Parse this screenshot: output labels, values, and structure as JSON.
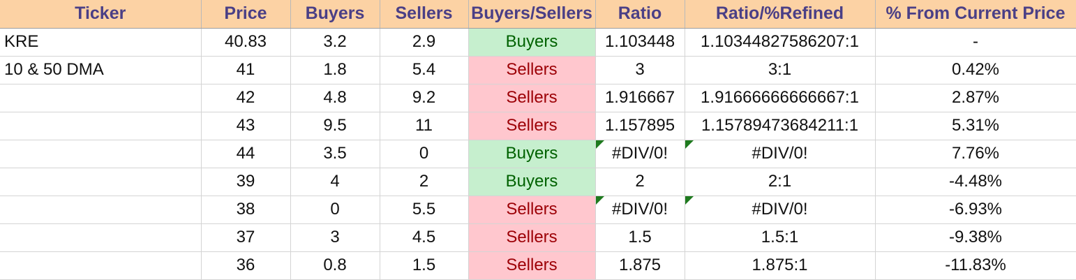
{
  "headers": [
    "Ticker",
    "Price",
    "Buyers",
    "Sellers",
    "Buyers/Sellers",
    "Ratio",
    "Ratio/%Refined",
    "% From Current Price"
  ],
  "rows": [
    {
      "ticker": "KRE",
      "price": "40.83",
      "buyers": "3.2",
      "sellers": "2.9",
      "side": "Buyers",
      "ratio": "1.103448",
      "refined": "1.10344827586207:1",
      "from_current": "-",
      "ratio_flag": false,
      "refined_flag": false
    },
    {
      "ticker": "10 & 50 DMA",
      "price": "41",
      "buyers": "1.8",
      "sellers": "5.4",
      "side": "Sellers",
      "ratio": "3",
      "refined": "3:1",
      "from_current": "0.42%",
      "ratio_flag": false,
      "refined_flag": false
    },
    {
      "ticker": "",
      "price": "42",
      "buyers": "4.8",
      "sellers": "9.2",
      "side": "Sellers",
      "ratio": "1.916667",
      "refined": "1.91666666666667:1",
      "from_current": "2.87%",
      "ratio_flag": false,
      "refined_flag": false
    },
    {
      "ticker": "",
      "price": "43",
      "buyers": "9.5",
      "sellers": "11",
      "side": "Sellers",
      "ratio": "1.157895",
      "refined": "1.15789473684211:1",
      "from_current": "5.31%",
      "ratio_flag": false,
      "refined_flag": false
    },
    {
      "ticker": "",
      "price": "44",
      "buyers": "3.5",
      "sellers": "0",
      "side": "Buyers",
      "ratio": "#DIV/0!",
      "refined": "#DIV/0!",
      "from_current": "7.76%",
      "ratio_flag": true,
      "refined_flag": true
    },
    {
      "ticker": "",
      "price": "39",
      "buyers": "4",
      "sellers": "2",
      "side": "Buyers",
      "ratio": "2",
      "refined": "2:1",
      "from_current": "-4.48%",
      "ratio_flag": false,
      "refined_flag": false
    },
    {
      "ticker": "",
      "price": "38",
      "buyers": "0",
      "sellers": "5.5",
      "side": "Sellers",
      "ratio": "#DIV/0!",
      "refined": "#DIV/0!",
      "from_current": "-6.93%",
      "ratio_flag": true,
      "refined_flag": true
    },
    {
      "ticker": "",
      "price": "37",
      "buyers": "3",
      "sellers": "4.5",
      "side": "Sellers",
      "ratio": "1.5",
      "refined": "1.5:1",
      "from_current": "-9.38%",
      "ratio_flag": false,
      "refined_flag": false
    },
    {
      "ticker": "",
      "price": "36",
      "buyers": "0.8",
      "sellers": "1.5",
      "side": "Sellers",
      "ratio": "1.875",
      "refined": "1.875:1",
      "from_current": "-11.83%",
      "ratio_flag": false,
      "refined_flag": false
    }
  ],
  "colors": {
    "header_bg": "#fcd2a4",
    "header_text": "#4a3f86",
    "buyers_bg": "#c6efce",
    "buyers_text": "#006100",
    "sellers_bg": "#ffc7ce",
    "sellers_text": "#9c0006",
    "error_indicator": "#1e7a1e"
  }
}
